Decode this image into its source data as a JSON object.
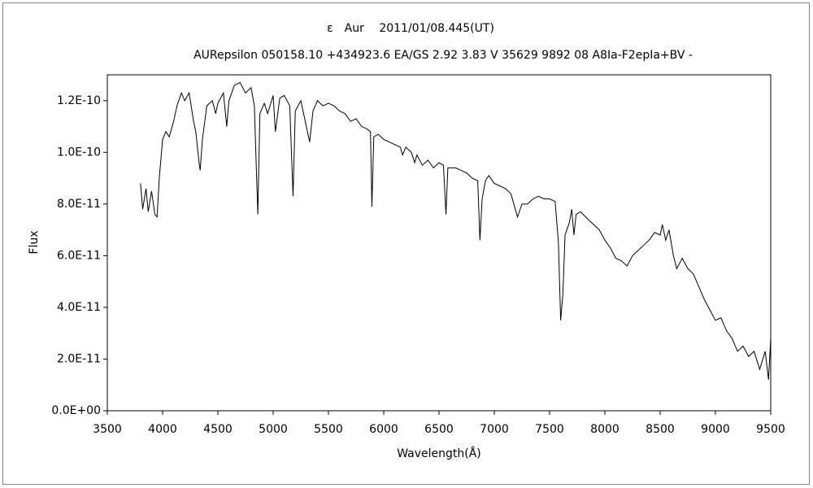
{
  "chart_data": {
    "type": "line",
    "title": "ε　Aur　 2011/01/08.445(UT)",
    "subtitle": "AURepsilon 050158.10 +434923.6 EA/GS 2.92 3.83 V 35629 9892 08 A8Ⅰa-F2epⅠa+BV -",
    "x_label": "Wavelength(Å)",
    "y_label": "Flux",
    "xlim": [
      3500,
      9500
    ],
    "xticks": [
      3500,
      4000,
      4500,
      5000,
      5500,
      6000,
      6500,
      7000,
      7500,
      8000,
      8500,
      9000,
      9500
    ],
    "ylim": [
      0,
      1.3e-10
    ],
    "yticks": [
      {
        "value": 0,
        "label": "0.0E+00"
      },
      {
        "value": 2e-11,
        "label": "2.0E-11"
      },
      {
        "value": 4e-11,
        "label": "4.0E-11"
      },
      {
        "value": 6e-11,
        "label": "6.0E-11"
      },
      {
        "value": 8e-11,
        "label": "8.0E-11"
      },
      {
        "value": 1e-10,
        "label": "1.0E-10"
      },
      {
        "value": 1.2e-10,
        "label": "1.2E-10"
      }
    ],
    "grid": false,
    "series": [
      {
        "name": "Flux",
        "color": "#000000",
        "x": [
          3800,
          3820,
          3850,
          3870,
          3900,
          3930,
          3950,
          3970,
          4000,
          4030,
          4060,
          4100,
          4130,
          4170,
          4200,
          4240,
          4280,
          4300,
          4330,
          4340,
          4360,
          4400,
          4450,
          4480,
          4500,
          4550,
          4580,
          4600,
          4650,
          4700,
          4750,
          4800,
          4830,
          4861,
          4880,
          4920,
          4950,
          5000,
          5020,
          5060,
          5100,
          5150,
          5180,
          5200,
          5250,
          5300,
          5330,
          5360,
          5400,
          5450,
          5500,
          5550,
          5600,
          5650,
          5700,
          5750,
          5800,
          5850,
          5880,
          5893,
          5910,
          5950,
          6000,
          6050,
          6100,
          6150,
          6170,
          6200,
          6250,
          6280,
          6300,
          6350,
          6400,
          6450,
          6500,
          6540,
          6563,
          6580,
          6650,
          6700,
          6750,
          6800,
          6850,
          6870,
          6890,
          6920,
          6950,
          7000,
          7050,
          7100,
          7150,
          7190,
          7210,
          7250,
          7300,
          7350,
          7400,
          7450,
          7500,
          7550,
          7580,
          7600,
          7620,
          7640,
          7680,
          7700,
          7720,
          7740,
          7780,
          7850,
          7900,
          7950,
          8000,
          8050,
          8100,
          8150,
          8200,
          8250,
          8300,
          8350,
          8400,
          8450,
          8500,
          8520,
          8550,
          8580,
          8620,
          8650,
          8700,
          8750,
          8800,
          8850,
          8900,
          8950,
          9000,
          9050,
          9100,
          9150,
          9200,
          9250,
          9300,
          9350,
          9400,
          9450,
          9480,
          9500
        ],
        "values": [
          8.8e-11,
          7.8e-11,
          8.6e-11,
          7.7e-11,
          8.5e-11,
          7.6e-11,
          7.5e-11,
          9e-11,
          1.05e-10,
          1.08e-10,
          1.06e-10,
          1.12e-10,
          1.18e-10,
          1.23e-10,
          1.2e-10,
          1.23e-10,
          1.12e-10,
          1.08e-10,
          9.6e-11,
          9.3e-11,
          1.05e-10,
          1.18e-10,
          1.2e-10,
          1.15e-10,
          1.19e-10,
          1.23e-10,
          1.1e-10,
          1.2e-10,
          1.26e-10,
          1.27e-10,
          1.23e-10,
          1.25e-10,
          1.18e-10,
          7.6e-11,
          1.15e-10,
          1.19e-10,
          1.15e-10,
          1.22e-10,
          1.08e-10,
          1.21e-10,
          1.22e-10,
          1.18e-10,
          8.3e-11,
          1.16e-10,
          1.2e-10,
          1.1e-10,
          1.04e-10,
          1.16e-10,
          1.2e-10,
          1.18e-10,
          1.19e-10,
          1.18e-10,
          1.16e-10,
          1.15e-10,
          1.12e-10,
          1.13e-10,
          1.1e-10,
          1.09e-10,
          1.08e-10,
          7.9e-11,
          1.06e-10,
          1.07e-10,
          1.05e-10,
          1.04e-10,
          1.03e-10,
          1.02e-10,
          9.9e-11,
          1.02e-10,
          1e-10,
          9.6e-11,
          9.9e-11,
          9.5e-11,
          9.7e-11,
          9.4e-11,
          9.6e-11,
          9.5e-11,
          7.6e-11,
          9.4e-11,
          9.4e-11,
          9.3e-11,
          9.2e-11,
          9e-11,
          8.9e-11,
          6.6e-11,
          8.2e-11,
          8.9e-11,
          9.1e-11,
          8.8e-11,
          8.7e-11,
          8.6e-11,
          8.4e-11,
          7.8e-11,
          7.5e-11,
          8e-11,
          8e-11,
          8.2e-11,
          8.3e-11,
          8.2e-11,
          8.2e-11,
          8.1e-11,
          6.5e-11,
          3.5e-11,
          4.5e-11,
          6.8e-11,
          7.3e-11,
          7.8e-11,
          6.8e-11,
          7.6e-11,
          7.7e-11,
          7.4e-11,
          7.2e-11,
          7e-11,
          6.6e-11,
          6.3e-11,
          5.9e-11,
          5.8e-11,
          5.6e-11,
          6e-11,
          6.2e-11,
          6.4e-11,
          6.6e-11,
          6.9e-11,
          6.8e-11,
          7.2e-11,
          6.6e-11,
          7e-11,
          6e-11,
          5.5e-11,
          5.9e-11,
          5.5e-11,
          5.3e-11,
          4.8e-11,
          4.3e-11,
          3.9e-11,
          3.5e-11,
          3.6e-11,
          3.1e-11,
          2.8e-11,
          2.3e-11,
          2.5e-11,
          2.1e-11,
          2.3e-11,
          1.6e-11,
          2.3e-11,
          1.2e-11,
          2.8e-11
        ]
      }
    ]
  }
}
